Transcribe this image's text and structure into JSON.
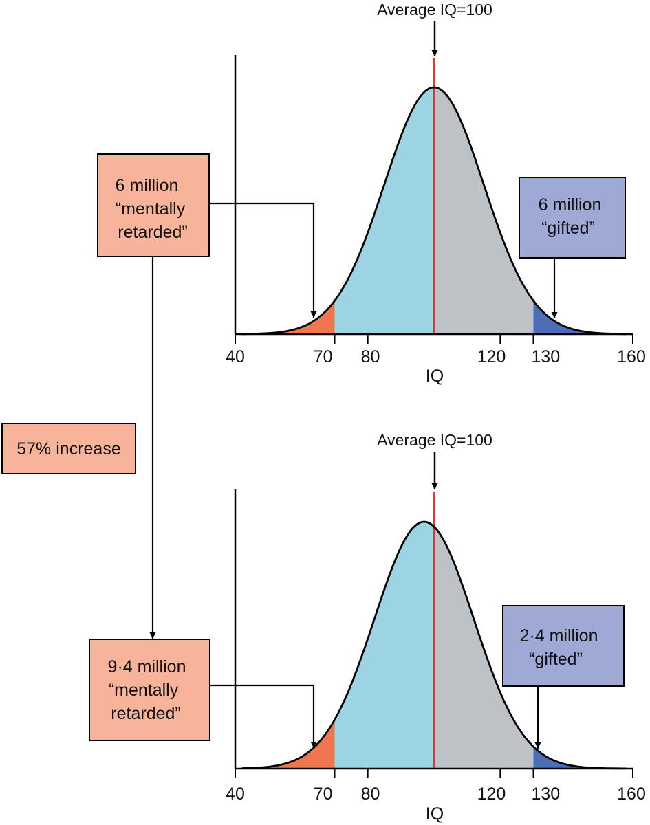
{
  "colors": {
    "low_tail": "#f07650",
    "center_left": "#9dd4e4",
    "center_right": "#bdc2c6",
    "high_tail": "#4c6eb5",
    "mean_line": "#e8322f",
    "low_box": "#f8b49b",
    "high_box": "#9ea9d6",
    "outline": "#000000"
  },
  "side_label": "57% increase",
  "chart_data": [
    {
      "type": "area",
      "xlabel": "IQ",
      "xlim": [
        40,
        160
      ],
      "ticks": [
        "40",
        "70",
        "80",
        "120",
        "130",
        "160"
      ],
      "tick_values": [
        40,
        70,
        80,
        120,
        130,
        160
      ],
      "mean_label": "Average IQ=100",
      "distribution": {
        "mean": 100,
        "sd": 15
      },
      "regions": [
        {
          "from": 40,
          "to": 70,
          "color_key": "low_tail"
        },
        {
          "from": 70,
          "to": 100,
          "color_key": "center_left"
        },
        {
          "from": 100,
          "to": 130,
          "color_key": "center_right"
        },
        {
          "from": 130,
          "to": 160,
          "color_key": "high_tail"
        }
      ],
      "low_callout": {
        "lines": [
          "6 million",
          "“mentally",
          "retarded”"
        ]
      },
      "high_callout": {
        "lines": [
          "6 million",
          "“gifted”"
        ]
      }
    },
    {
      "type": "area",
      "xlabel": "IQ",
      "xlim": [
        40,
        160
      ],
      "ticks": [
        "40",
        "70",
        "80",
        "120",
        "130",
        "160"
      ],
      "tick_values": [
        40,
        70,
        80,
        120,
        130,
        160
      ],
      "mean_label": "Average IQ=100",
      "distribution": {
        "mean": 97,
        "sd": 15
      },
      "regions": [
        {
          "from": 40,
          "to": 70,
          "color_key": "low_tail"
        },
        {
          "from": 70,
          "to": 100,
          "color_key": "center_left"
        },
        {
          "from": 100,
          "to": 130,
          "color_key": "center_right"
        },
        {
          "from": 130,
          "to": 160,
          "color_key": "high_tail"
        }
      ],
      "low_callout": {
        "lines": [
          "9·4 million",
          "“mentally",
          "retarded”"
        ]
      },
      "high_callout": {
        "lines": [
          "2·4 million",
          "“gifted”"
        ]
      }
    }
  ]
}
